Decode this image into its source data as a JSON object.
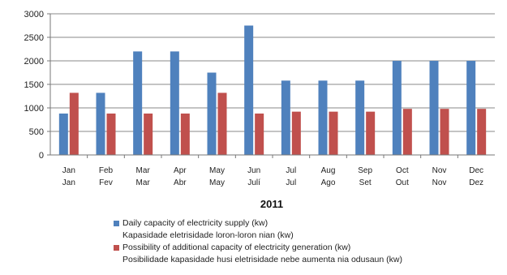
{
  "chart_data": {
    "type": "bar",
    "title": "",
    "xlabel": "2011",
    "ylabel": "",
    "ylim": [
      0,
      3000
    ],
    "yticks": [
      0,
      500,
      1000,
      1500,
      2000,
      2500,
      3000
    ],
    "grid": true,
    "legend_position": "bottom",
    "categories": [
      [
        "Jan",
        "Jan"
      ],
      [
        "Feb",
        "Fev"
      ],
      [
        "Mar",
        "Mar"
      ],
      [
        "Apr",
        "Abr"
      ],
      [
        "May",
        "May"
      ],
      [
        "Jun",
        "Julí"
      ],
      [
        "Jul",
        "Jul"
      ],
      [
        "Aug",
        "Ago"
      ],
      [
        "Sep",
        "Set"
      ],
      [
        "Oct",
        "Out"
      ],
      [
        "Nov",
        "Nov"
      ],
      [
        "Dec",
        "Dez"
      ]
    ],
    "series": [
      {
        "name": "Daily capacity of electricity supply (kw)",
        "name_secondary": "Kapasidade eletrisidade loron-loron  nian (kw)",
        "color": "#4f81bd",
        "values": [
          880,
          1320,
          2200,
          2200,
          1750,
          2750,
          1580,
          1580,
          1580,
          2000,
          2000,
          2000
        ]
      },
      {
        "name": "Possibility of additional capacity of electricity generation (kw)",
        "name_secondary": "Posibilidade kapasidade husi eletrisidade nebe aumenta nia odusaun (kw)",
        "color": "#c0504d",
        "values": [
          1320,
          880,
          880,
          880,
          1320,
          880,
          920,
          920,
          920,
          980,
          980,
          980
        ]
      }
    ]
  }
}
